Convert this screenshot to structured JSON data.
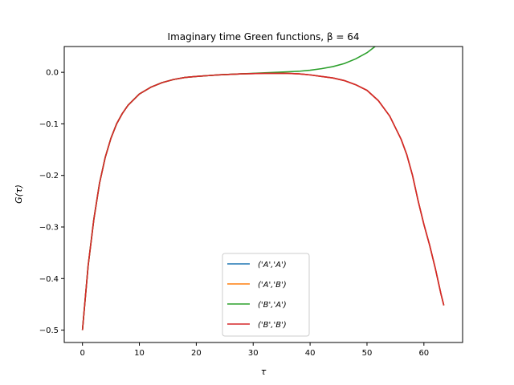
{
  "chart_data": {
    "type": "line",
    "title": "Imaginary time Green functions, β = 64",
    "xlabel": "τ",
    "ylabel": "G(τ)",
    "xlim": [
      -3.2,
      66.8
    ],
    "ylim": [
      -0.524,
      0.05
    ],
    "xticks": [
      0,
      10,
      20,
      30,
      40,
      50,
      60
    ],
    "xtick_labels": [
      "0",
      "10",
      "20",
      "30",
      "40",
      "50",
      "60"
    ],
    "yticks": [
      0.0,
      -0.1,
      -0.2,
      -0.3,
      -0.4,
      -0.5
    ],
    "ytick_labels": [
      "0.0",
      "−0.1",
      "−0.2",
      "−0.3",
      "−0.4",
      "−0.5"
    ],
    "grid": false,
    "legend_position": "lower center",
    "x": [
      0,
      1,
      2,
      3,
      4,
      5,
      6,
      7,
      8,
      10,
      12,
      14,
      16,
      18,
      20,
      24,
      28,
      32,
      36,
      38,
      40,
      42,
      44,
      46,
      48,
      50,
      52,
      54,
      56,
      57,
      58,
      59,
      60,
      61,
      62,
      63,
      63.5
    ],
    "series": [
      {
        "name": "('A','A')",
        "color": "#1f77b4",
        "values": [
          -0.5,
          -0.375,
          -0.285,
          -0.215,
          -0.165,
          -0.128,
          -0.1,
          -0.08,
          -0.064,
          -0.042,
          -0.029,
          -0.02,
          -0.014,
          -0.01,
          -0.008,
          -0.005,
          -0.003,
          -0.002,
          -0.002,
          -0.003,
          -0.005,
          -0.008,
          -0.011,
          -0.016,
          -0.024,
          -0.035,
          -0.055,
          -0.085,
          -0.13,
          -0.16,
          -0.2,
          -0.25,
          -0.295,
          -0.335,
          -0.38,
          -0.43,
          -0.452
        ]
      },
      {
        "name": "('A','B')",
        "color": "#ff7f0e",
        "values": [
          -0.5,
          -0.375,
          -0.285,
          -0.215,
          -0.165,
          -0.128,
          -0.1,
          -0.08,
          -0.064,
          -0.042,
          -0.029,
          -0.02,
          -0.014,
          -0.01,
          -0.008,
          -0.005,
          -0.003,
          -0.002,
          -0.002,
          -0.003,
          -0.005,
          -0.008,
          -0.011,
          -0.016,
          -0.024,
          -0.035,
          -0.055,
          -0.085,
          -0.13,
          -0.16,
          -0.2,
          -0.25,
          -0.295,
          -0.335,
          -0.38,
          -0.43,
          -0.452
        ]
      },
      {
        "name": "('B','A')",
        "color": "#2ca02c",
        "values": [
          -0.5,
          -0.375,
          -0.285,
          -0.215,
          -0.165,
          -0.128,
          -0.1,
          -0.08,
          -0.064,
          -0.042,
          -0.029,
          -0.02,
          -0.014,
          -0.01,
          -0.008,
          -0.005,
          -0.003,
          -0.001,
          0.001,
          0.002,
          0.004,
          0.007,
          0.011,
          0.017,
          0.026,
          0.038,
          0.055,
          0.08,
          0.115,
          null,
          null,
          null,
          null,
          null,
          null,
          null,
          null
        ]
      },
      {
        "name": "('B','B')",
        "color": "#d62728",
        "values": [
          -0.5,
          -0.375,
          -0.285,
          -0.215,
          -0.165,
          -0.128,
          -0.1,
          -0.08,
          -0.064,
          -0.042,
          -0.029,
          -0.02,
          -0.014,
          -0.01,
          -0.008,
          -0.005,
          -0.003,
          -0.002,
          -0.002,
          -0.003,
          -0.005,
          -0.008,
          -0.011,
          -0.016,
          -0.024,
          -0.035,
          -0.055,
          -0.085,
          -0.13,
          -0.16,
          -0.2,
          -0.25,
          -0.295,
          -0.335,
          -0.38,
          -0.43,
          -0.452
        ]
      }
    ]
  }
}
